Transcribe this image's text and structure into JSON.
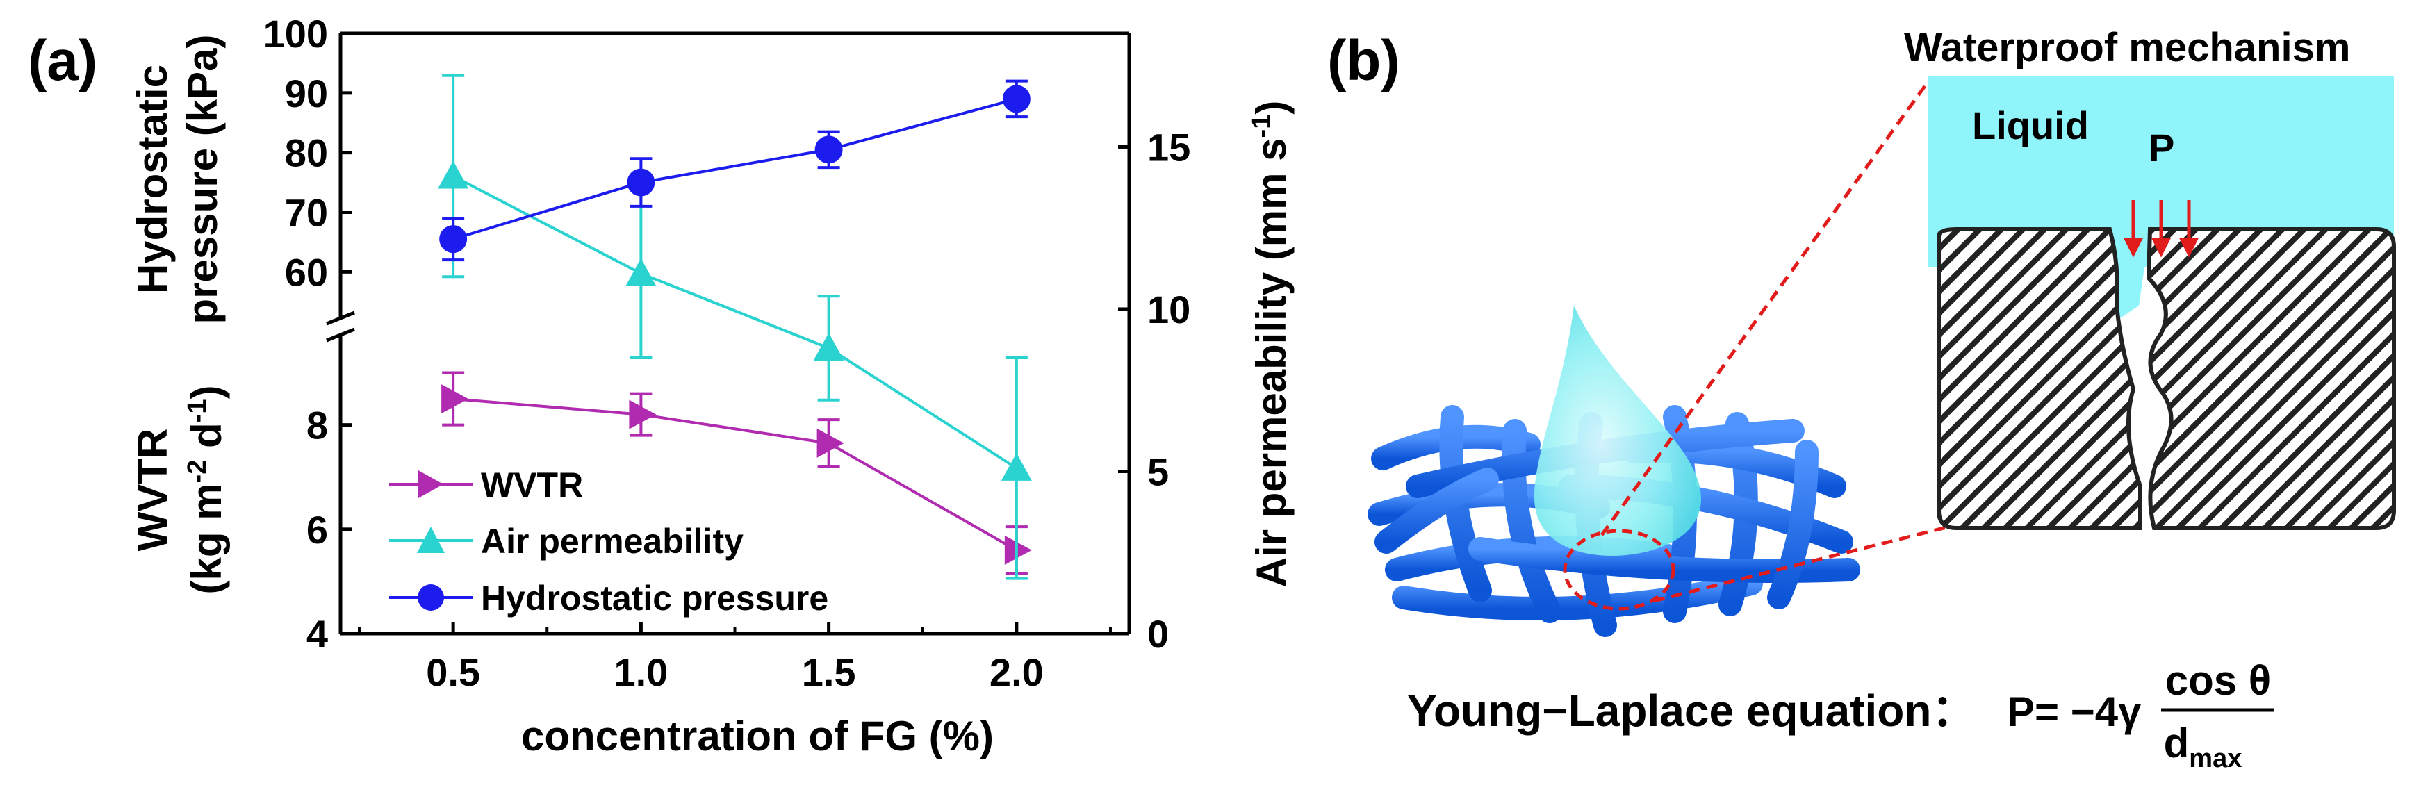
{
  "chart_data": {
    "type": "line",
    "panel_label": "(a)",
    "x": [
      0.5,
      1.0,
      1.5,
      2.0
    ],
    "x_tick_labels": [
      "0.5",
      "1.0",
      "1.5",
      "2.0"
    ],
    "xlabel": "concentration of FG (%)",
    "xlim": [
      0.2,
      2.3
    ],
    "y_left_top": {
      "label_line1": "Hydrostatic",
      "label_line2": "pressure (kPa)",
      "ylim": [
        52,
        100
      ],
      "ticks": [
        "60",
        "70",
        "80",
        "90",
        "100"
      ]
    },
    "y_left_bottom": {
      "label_line1": "WVTR",
      "label_line2_parts": [
        "(kg m",
        "-2",
        " d",
        "-1",
        ")"
      ],
      "ylim": [
        4,
        9.7
      ],
      "ticks": [
        "4",
        "6",
        "8"
      ]
    },
    "y_right": {
      "label_parts": [
        "Air permeability (mm s",
        "-1",
        ")"
      ],
      "ylim": [
        0,
        18.5
      ],
      "ticks": [
        "0",
        "5",
        "10",
        "15"
      ]
    },
    "series": [
      {
        "name": "WVTR",
        "axis": "left_bottom",
        "color": "#b02bb0",
        "marker": "triangle-right",
        "values": [
          8.5,
          8.2,
          7.65,
          5.6
        ],
        "errors": [
          0.5,
          0.4,
          0.45,
          0.45
        ]
      },
      {
        "name": "Air permeability",
        "axis": "right",
        "color": "#2ad3d0",
        "marker": "triangle-up",
        "values": [
          14.1,
          11.1,
          8.8,
          5.1
        ],
        "errors": [
          3.1,
          2.6,
          1.6,
          3.4
        ]
      },
      {
        "name": "Hydrostatic pressure",
        "axis": "left_top",
        "color": "#1c1cee",
        "marker": "circle",
        "values": [
          65.5,
          75,
          80.5,
          89
        ],
        "errors": [
          3.5,
          4,
          3,
          3
        ]
      }
    ]
  },
  "diagram": {
    "panel_label": "(b)",
    "title": "Waterproof mechanism",
    "liquid_label": "Liquid",
    "pressure_label": "P",
    "equation_label": "Young−Laplace equation：",
    "equation_lhs": "P= −4γ",
    "equation_numerator": "cos θ",
    "equation_denominator": "d",
    "equation_denominator_sub": "max"
  }
}
